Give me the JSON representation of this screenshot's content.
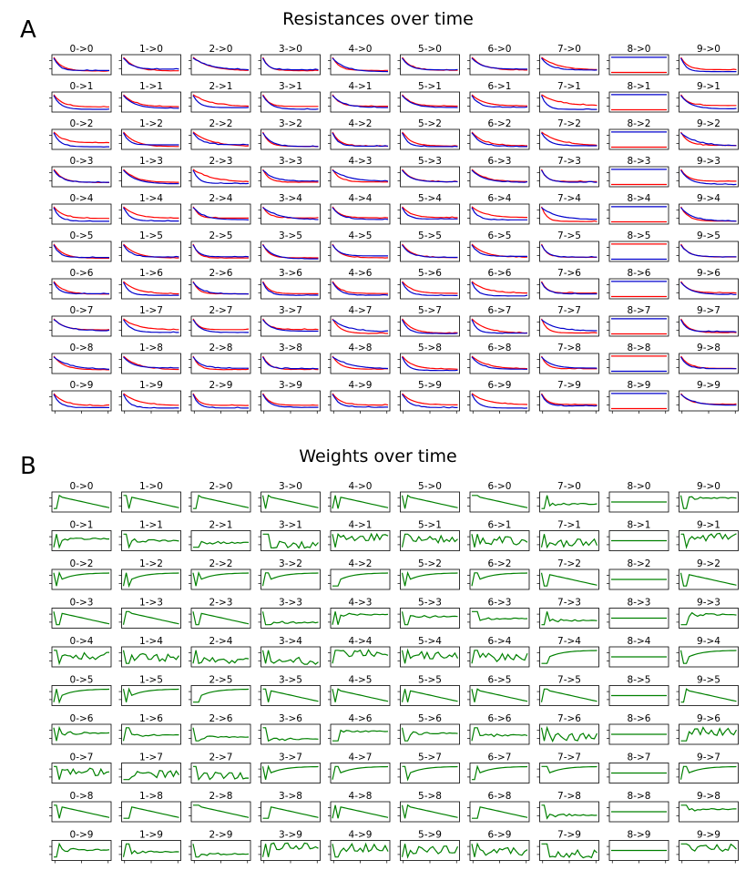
{
  "figure": {
    "panel_a": {
      "letter": "A",
      "title": "Resistances over time"
    },
    "panel_b": {
      "letter": "B",
      "title": "Weights over time"
    }
  },
  "chart_data": [
    {
      "type": "line",
      "title": "Resistances over time",
      "grid": false,
      "rows": 10,
      "cols": 10,
      "subplot_titles": [
        "0->0",
        "1->0",
        "2->0",
        "3->0",
        "4->0",
        "5->0",
        "6->0",
        "7->0",
        "8->0",
        "9->0",
        "0->1",
        "1->1",
        "2->1",
        "3->1",
        "4->1",
        "5->1",
        "6->1",
        "7->1",
        "8->1",
        "9->1",
        "0->2",
        "1->2",
        "2->2",
        "3->2",
        "4->2",
        "5->2",
        "6->2",
        "7->2",
        "8->2",
        "9->2",
        "0->3",
        "1->3",
        "2->3",
        "3->3",
        "4->3",
        "5->3",
        "6->3",
        "7->3",
        "8->3",
        "9->3",
        "0->4",
        "1->4",
        "2->4",
        "3->4",
        "4->4",
        "5->4",
        "6->4",
        "7->4",
        "8->4",
        "9->4",
        "0->5",
        "1->5",
        "2->5",
        "3->5",
        "4->5",
        "5->5",
        "6->5",
        "7->5",
        "8->5",
        "9->5",
        "0->6",
        "1->6",
        "2->6",
        "3->6",
        "4->6",
        "5->6",
        "6->6",
        "7->6",
        "8->6",
        "9->6",
        "0->7",
        "1->7",
        "2->7",
        "3->7",
        "4->7",
        "5->7",
        "6->7",
        "7->7",
        "8->7",
        "9->7",
        "0->8",
        "1->8",
        "2->8",
        "3->8",
        "4->8",
        "5->8",
        "6->8",
        "7->8",
        "8->8",
        "9->8",
        "0->9",
        "1->9",
        "2->9",
        "3->9",
        "4->9",
        "5->9",
        "6->9",
        "7->9",
        "8->9",
        "9->9"
      ],
      "series_colors": {
        "red": "#ff0000",
        "blue": "#0000cc"
      },
      "x": [
        0,
        1,
        2,
        3,
        4,
        5,
        6,
        7,
        8,
        9,
        10,
        11,
        12,
        13,
        14,
        15,
        16,
        17,
        18,
        19,
        20
      ]
    },
    {
      "type": "line",
      "title": "Weights over time",
      "grid": false,
      "rows": 10,
      "cols": 10,
      "subplot_titles": [
        "0->0",
        "1->0",
        "2->0",
        "3->0",
        "4->0",
        "5->0",
        "6->0",
        "7->0",
        "8->0",
        "9->0",
        "0->1",
        "1->1",
        "2->1",
        "3->1",
        "4->1",
        "5->1",
        "6->1",
        "7->1",
        "8->1",
        "9->1",
        "0->2",
        "1->2",
        "2->2",
        "3->2",
        "4->2",
        "5->2",
        "6->2",
        "7->2",
        "8->2",
        "9->2",
        "0->3",
        "1->3",
        "2->3",
        "3->3",
        "4->3",
        "5->3",
        "6->3",
        "7->3",
        "8->3",
        "9->3",
        "0->4",
        "1->4",
        "2->4",
        "3->4",
        "4->4",
        "5->4",
        "6->4",
        "7->4",
        "8->4",
        "9->4",
        "0->5",
        "1->5",
        "2->5",
        "3->5",
        "4->5",
        "5->5",
        "6->5",
        "7->5",
        "8->5",
        "9->5",
        "0->6",
        "1->6",
        "2->6",
        "3->6",
        "4->6",
        "5->6",
        "6->6",
        "7->6",
        "8->6",
        "9->6",
        "0->7",
        "1->7",
        "2->7",
        "3->7",
        "4->7",
        "5->7",
        "6->7",
        "7->7",
        "8->7",
        "9->7",
        "0->8",
        "1->8",
        "2->8",
        "3->8",
        "4->8",
        "5->8",
        "6->8",
        "7->8",
        "8->8",
        "9->8",
        "0->9",
        "1->9",
        "2->9",
        "3->9",
        "4->9",
        "5->9",
        "6->9",
        "7->9",
        "8->9",
        "9->9"
      ],
      "series_colors": {
        "green": "#008000"
      },
      "x": [
        0,
        1,
        2,
        3,
        4,
        5,
        6,
        7,
        8,
        9,
        10,
        11,
        12,
        13,
        14,
        15,
        16,
        17,
        18,
        19,
        20
      ]
    }
  ]
}
